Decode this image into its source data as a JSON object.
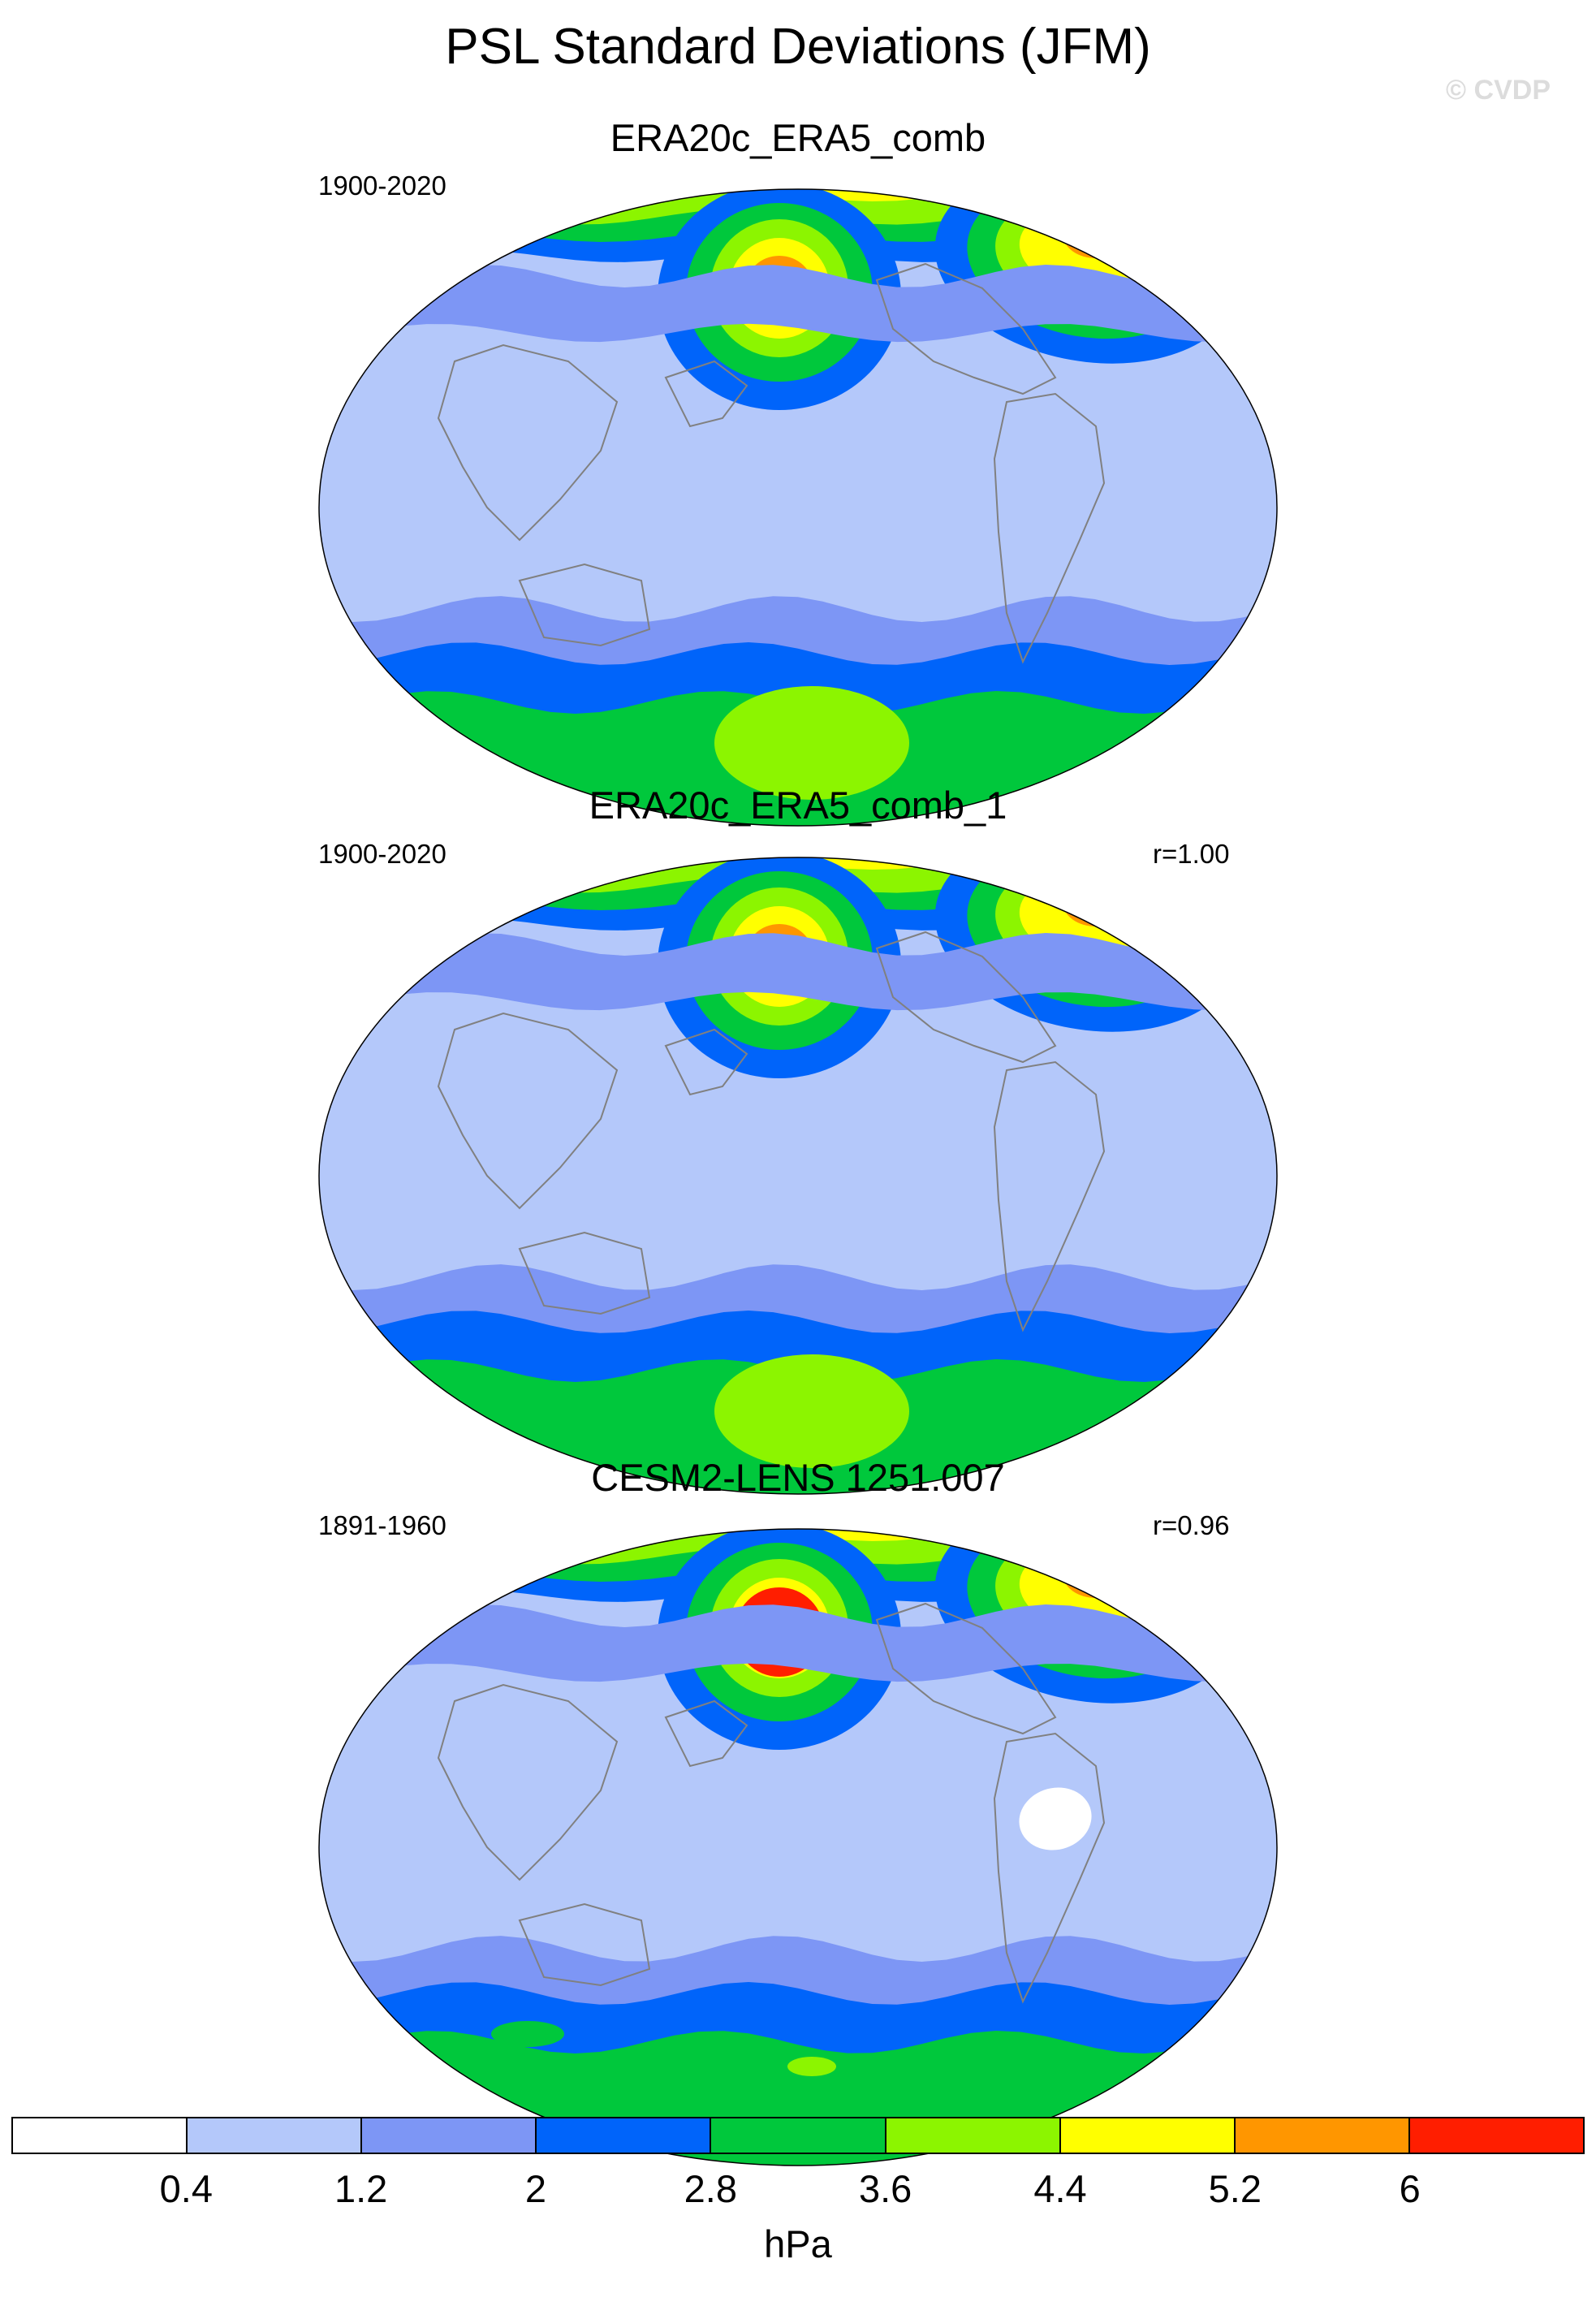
{
  "title": "PSL Standard Deviations (JFM)",
  "credit": "© CVDP",
  "panels": [
    {
      "title": "ERA20c_ERA5_comb",
      "period": "1900-2020",
      "corr": "",
      "variant": 0
    },
    {
      "title": "ERA20c_ERA5_comb_1",
      "period": "1900-2020",
      "corr": "r=1.00",
      "variant": 1
    },
    {
      "title": "CESM2-LENS 1251.007",
      "period": "1891-1960",
      "corr": "r=0.96",
      "variant": 2
    }
  ],
  "colorbar": {
    "units": "hPa",
    "levels": [
      "0.4",
      "1.2",
      "2",
      "2.8",
      "3.6",
      "4.4",
      "5.2",
      "6"
    ],
    "colors": [
      "#ffffff",
      "#b4c8fa",
      "#7d96f5",
      "#0064fa",
      "#00c83c",
      "#8cf500",
      "#ffff00",
      "#ff9600",
      "#ff1e00"
    ]
  }
}
